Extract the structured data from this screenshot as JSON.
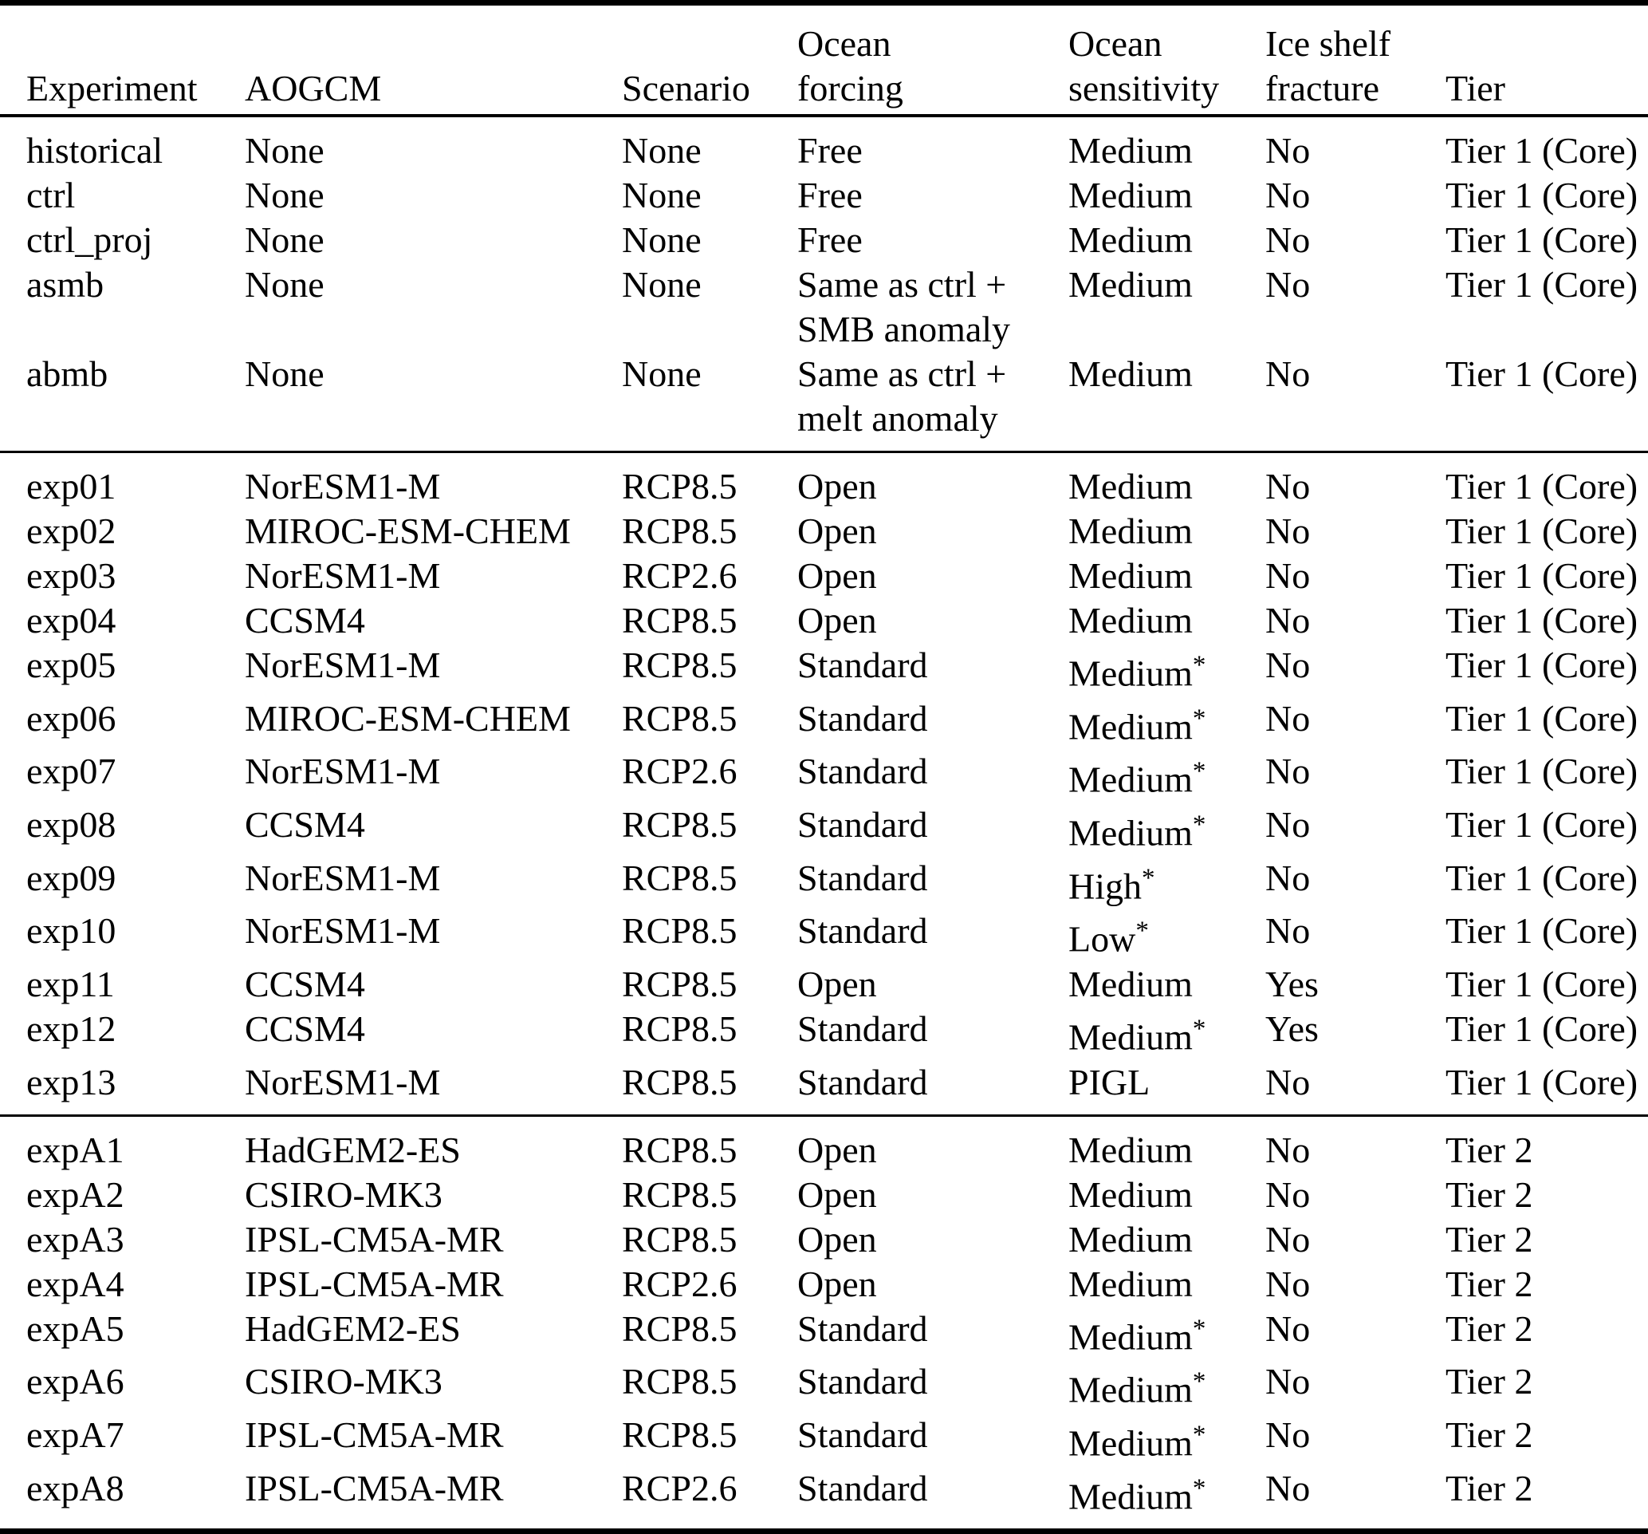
{
  "colors": {
    "background": "#ffffff",
    "text": "#000000",
    "rule": "#000000"
  },
  "table": {
    "column_keys": [
      "experiment",
      "aogcm",
      "scenario",
      "ocean_forcing",
      "ocean_sensitivity",
      "ice_shelf_fracture",
      "tier"
    ],
    "header": [
      {
        "key": "experiment",
        "top": "",
        "bottom": "Experiment"
      },
      {
        "key": "aogcm",
        "top": "",
        "bottom": "AOGCM"
      },
      {
        "key": "scenario",
        "top": "",
        "bottom": "Scenario"
      },
      {
        "key": "ocean_forcing",
        "top": "Ocean",
        "bottom": "forcing"
      },
      {
        "key": "ocean_sensitivity",
        "top": "Ocean",
        "bottom": "sensitivity"
      },
      {
        "key": "ice_shelf_fracture",
        "top": "Ice shelf",
        "bottom": "fracture"
      },
      {
        "key": "tier",
        "top": "",
        "bottom": "Tier"
      }
    ],
    "sections": [
      {
        "rows": [
          {
            "experiment": "historical",
            "aogcm": "None",
            "scenario": "None",
            "ocean_forcing": [
              "Free"
            ],
            "ocean_sensitivity": "Medium",
            "ice_shelf_fracture": "No",
            "tier": "Tier 1 (Core)"
          },
          {
            "experiment": "ctrl",
            "aogcm": "None",
            "scenario": "None",
            "ocean_forcing": [
              "Free"
            ],
            "ocean_sensitivity": "Medium",
            "ice_shelf_fracture": "No",
            "tier": "Tier 1 (Core)"
          },
          {
            "experiment": "ctrl_proj",
            "aogcm": "None",
            "scenario": "None",
            "ocean_forcing": [
              "Free"
            ],
            "ocean_sensitivity": "Medium",
            "ice_shelf_fracture": "No",
            "tier": "Tier 1 (Core)"
          },
          {
            "experiment": "asmb",
            "aogcm": "None",
            "scenario": "None",
            "ocean_forcing": [
              "Same as ctrl +",
              "SMB anomaly"
            ],
            "ocean_sensitivity": "Medium",
            "ice_shelf_fracture": "No",
            "tier": "Tier 1 (Core)"
          },
          {
            "experiment": "abmb",
            "aogcm": "None",
            "scenario": "None",
            "ocean_forcing": [
              "Same as ctrl +",
              "melt anomaly"
            ],
            "ocean_sensitivity": "Medium",
            "ice_shelf_fracture": "No",
            "tier": "Tier 1 (Core)"
          }
        ]
      },
      {
        "rows": [
          {
            "experiment": "exp01",
            "aogcm": "NorESM1-M",
            "scenario": "RCP8.5",
            "ocean_forcing": [
              "Open"
            ],
            "ocean_sensitivity": "Medium",
            "ice_shelf_fracture": "No",
            "tier": "Tier 1 (Core)"
          },
          {
            "experiment": "exp02",
            "aogcm": "MIROC-ESM-CHEM",
            "scenario": "RCP8.5",
            "ocean_forcing": [
              "Open"
            ],
            "ocean_sensitivity": "Medium",
            "ice_shelf_fracture": "No",
            "tier": "Tier 1 (Core)"
          },
          {
            "experiment": "exp03",
            "aogcm": "NorESM1-M",
            "scenario": "RCP2.6",
            "ocean_forcing": [
              "Open"
            ],
            "ocean_sensitivity": "Medium",
            "ice_shelf_fracture": "No",
            "tier": "Tier 1 (Core)"
          },
          {
            "experiment": "exp04",
            "aogcm": "CCSM4",
            "scenario": "RCP8.5",
            "ocean_forcing": [
              "Open"
            ],
            "ocean_sensitivity": "Medium",
            "ice_shelf_fracture": "No",
            "tier": "Tier 1 (Core)"
          },
          {
            "experiment": "exp05",
            "aogcm": "NorESM1-M",
            "scenario": "RCP8.5",
            "ocean_forcing": [
              "Standard"
            ],
            "ocean_sensitivity": "Medium*",
            "ice_shelf_fracture": "No",
            "tier": "Tier 1 (Core)"
          },
          {
            "experiment": "exp06",
            "aogcm": "MIROC-ESM-CHEM",
            "scenario": "RCP8.5",
            "ocean_forcing": [
              "Standard"
            ],
            "ocean_sensitivity": "Medium*",
            "ice_shelf_fracture": "No",
            "tier": "Tier 1 (Core)"
          },
          {
            "experiment": "exp07",
            "aogcm": "NorESM1-M",
            "scenario": "RCP2.6",
            "ocean_forcing": [
              "Standard"
            ],
            "ocean_sensitivity": "Medium*",
            "ice_shelf_fracture": "No",
            "tier": "Tier 1 (Core)"
          },
          {
            "experiment": "exp08",
            "aogcm": "CCSM4",
            "scenario": "RCP8.5",
            "ocean_forcing": [
              "Standard"
            ],
            "ocean_sensitivity": "Medium*",
            "ice_shelf_fracture": "No",
            "tier": "Tier 1 (Core)"
          },
          {
            "experiment": "exp09",
            "aogcm": "NorESM1-M",
            "scenario": "RCP8.5",
            "ocean_forcing": [
              "Standard"
            ],
            "ocean_sensitivity": "High*",
            "ice_shelf_fracture": "No",
            "tier": "Tier 1 (Core)"
          },
          {
            "experiment": "exp10",
            "aogcm": "NorESM1-M",
            "scenario": "RCP8.5",
            "ocean_forcing": [
              "Standard"
            ],
            "ocean_sensitivity": "Low*",
            "ice_shelf_fracture": "No",
            "tier": "Tier 1 (Core)"
          },
          {
            "experiment": "exp11",
            "aogcm": "CCSM4",
            "scenario": "RCP8.5",
            "ocean_forcing": [
              "Open"
            ],
            "ocean_sensitivity": "Medium",
            "ice_shelf_fracture": "Yes",
            "tier": "Tier 1 (Core)"
          },
          {
            "experiment": "exp12",
            "aogcm": "CCSM4",
            "scenario": "RCP8.5",
            "ocean_forcing": [
              "Standard"
            ],
            "ocean_sensitivity": "Medium*",
            "ice_shelf_fracture": "Yes",
            "tier": "Tier 1 (Core)"
          },
          {
            "experiment": "exp13",
            "aogcm": "NorESM1-M",
            "scenario": "RCP8.5",
            "ocean_forcing": [
              "Standard"
            ],
            "ocean_sensitivity": "PIGL",
            "ice_shelf_fracture": "No",
            "tier": "Tier 1 (Core)"
          }
        ]
      },
      {
        "rows": [
          {
            "experiment": "expA1",
            "aogcm": "HadGEM2-ES",
            "scenario": "RCP8.5",
            "ocean_forcing": [
              "Open"
            ],
            "ocean_sensitivity": "Medium",
            "ice_shelf_fracture": "No",
            "tier": "Tier 2"
          },
          {
            "experiment": "expA2",
            "aogcm": "CSIRO-MK3",
            "scenario": "RCP8.5",
            "ocean_forcing": [
              "Open"
            ],
            "ocean_sensitivity": "Medium",
            "ice_shelf_fracture": "No",
            "tier": "Tier 2"
          },
          {
            "experiment": "expA3",
            "aogcm": "IPSL-CM5A-MR",
            "scenario": "RCP8.5",
            "ocean_forcing": [
              "Open"
            ],
            "ocean_sensitivity": "Medium",
            "ice_shelf_fracture": "No",
            "tier": "Tier 2"
          },
          {
            "experiment": "expA4",
            "aogcm": "IPSL-CM5A-MR",
            "scenario": "RCP2.6",
            "ocean_forcing": [
              "Open"
            ],
            "ocean_sensitivity": "Medium",
            "ice_shelf_fracture": "No",
            "tier": "Tier 2"
          },
          {
            "experiment": "expA5",
            "aogcm": "HadGEM2-ES",
            "scenario": "RCP8.5",
            "ocean_forcing": [
              "Standard"
            ],
            "ocean_sensitivity": "Medium*",
            "ice_shelf_fracture": "No",
            "tier": "Tier 2"
          },
          {
            "experiment": "expA6",
            "aogcm": "CSIRO-MK3",
            "scenario": "RCP8.5",
            "ocean_forcing": [
              "Standard"
            ],
            "ocean_sensitivity": "Medium*",
            "ice_shelf_fracture": "No",
            "tier": "Tier 2"
          },
          {
            "experiment": "expA7",
            "aogcm": "IPSL-CM5A-MR",
            "scenario": "RCP8.5",
            "ocean_forcing": [
              "Standard"
            ],
            "ocean_sensitivity": "Medium*",
            "ice_shelf_fracture": "No",
            "tier": "Tier 2"
          },
          {
            "experiment": "expA8",
            "aogcm": "IPSL-CM5A-MR",
            "scenario": "RCP2.6",
            "ocean_forcing": [
              "Standard"
            ],
            "ocean_sensitivity": "Medium*",
            "ice_shelf_fracture": "No",
            "tier": "Tier 2"
          }
        ]
      }
    ]
  }
}
